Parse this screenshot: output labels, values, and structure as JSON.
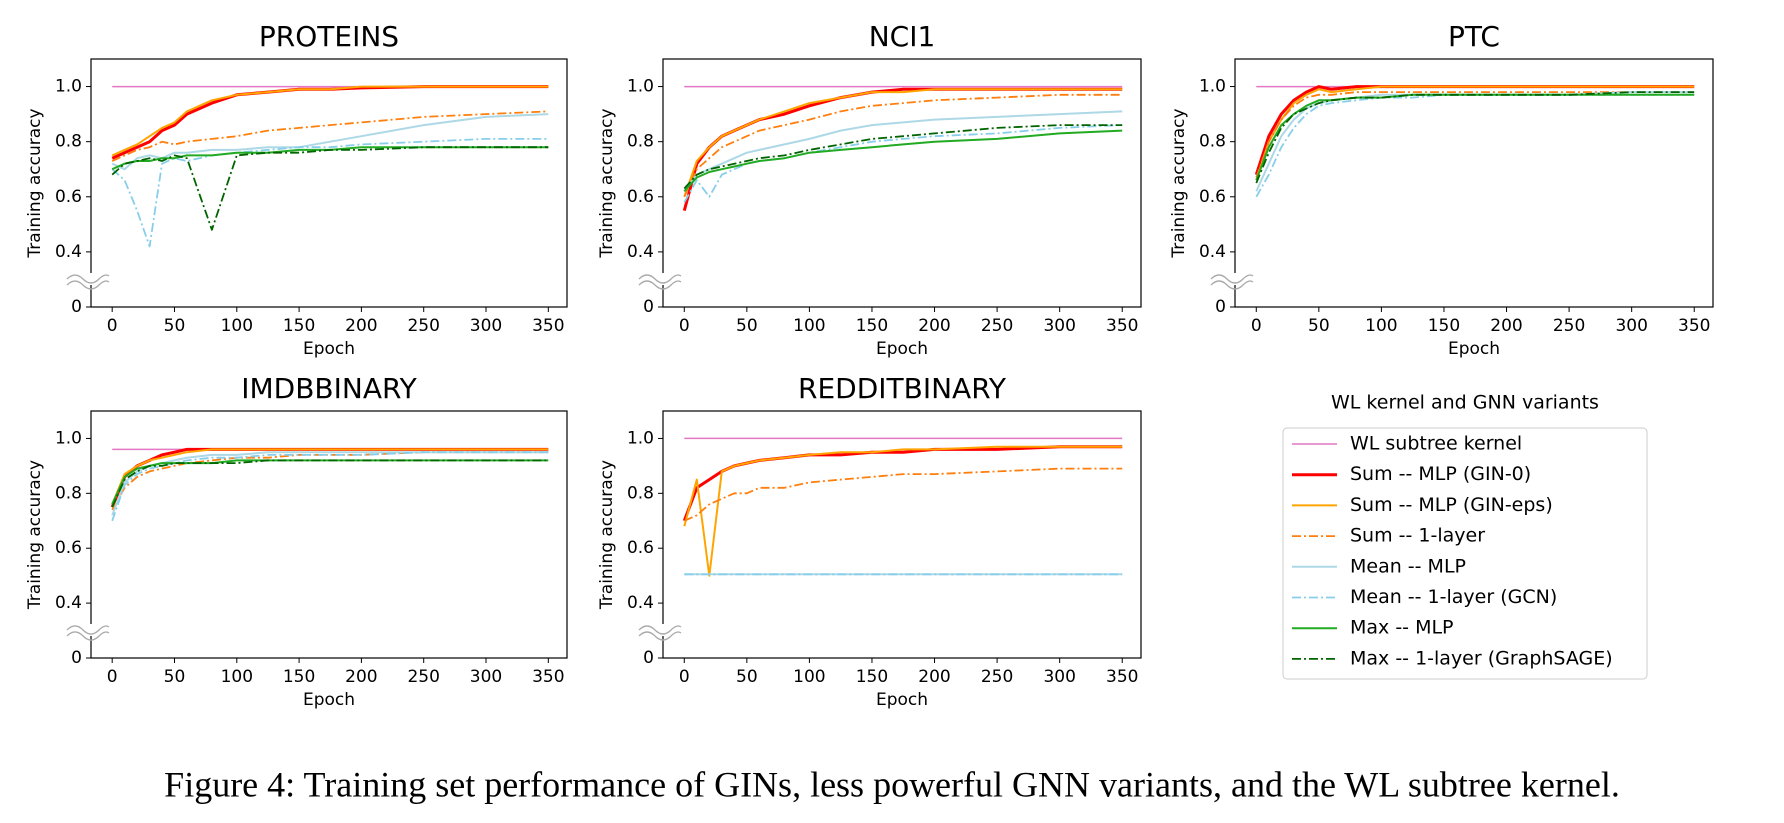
{
  "chart_data": [
    {
      "type": "line",
      "title": "PROTEINS",
      "xlabel": "Epoch",
      "ylabel": "Training accuracy",
      "x": [
        0,
        10,
        20,
        30,
        40,
        50,
        60,
        80,
        100,
        125,
        150,
        175,
        200,
        250,
        300,
        350
      ],
      "xlim": [
        -17,
        365
      ],
      "xticks": [
        0,
        50,
        100,
        150,
        200,
        250,
        300,
        350
      ],
      "ylim": [
        0.2,
        1.1
      ],
      "yticks": [
        {
          "value": 0,
          "label": "0"
        },
        0.4,
        0.6,
        0.8,
        {
          "value": 1,
          "label": "1.0"
        }
      ],
      "series": [
        {
          "values": [
            1,
            1,
            1,
            1,
            1,
            1,
            1,
            1,
            1,
            1,
            1,
            1,
            1,
            1,
            1,
            1
          ]
        },
        {
          "values": [
            0.74,
            0.76,
            0.78,
            0.8,
            0.84,
            0.86,
            0.9,
            0.94,
            0.97,
            0.98,
            0.99,
            0.99,
            0.995,
            1,
            1,
            1
          ]
        },
        {
          "values": [
            0.75,
            0.77,
            0.79,
            0.82,
            0.85,
            0.87,
            0.91,
            0.95,
            0.97,
            0.98,
            0.99,
            0.99,
            1,
            1,
            1,
            1
          ]
        },
        {
          "values": [
            0.73,
            0.75,
            0.77,
            0.78,
            0.8,
            0.79,
            0.8,
            0.81,
            0.82,
            0.84,
            0.85,
            0.86,
            0.87,
            0.89,
            0.9,
            0.91
          ]
        },
        {
          "values": [
            0.72,
            0.7,
            0.74,
            0.75,
            0.74,
            0.76,
            0.76,
            0.77,
            0.77,
            0.78,
            0.78,
            0.8,
            0.82,
            0.86,
            0.89,
            0.9
          ]
        },
        {
          "values": [
            0.7,
            0.66,
            0.55,
            0.42,
            0.72,
            0.74,
            0.73,
            0.75,
            0.76,
            0.77,
            0.78,
            0.78,
            0.79,
            0.8,
            0.81,
            0.81
          ]
        },
        {
          "values": [
            0.7,
            0.72,
            0.73,
            0.73,
            0.74,
            0.74,
            0.75,
            0.75,
            0.76,
            0.76,
            0.77,
            0.77,
            0.78,
            0.78,
            0.78,
            0.78
          ]
        },
        {
          "values": [
            0.68,
            0.72,
            0.73,
            0.74,
            0.73,
            0.75,
            0.74,
            0.48,
            0.75,
            0.76,
            0.76,
            0.77,
            0.77,
            0.78,
            0.78,
            0.78
          ]
        }
      ]
    },
    {
      "type": "line",
      "title": "NCI1",
      "xlabel": "Epoch",
      "ylabel": "Training accuracy",
      "x": [
        0,
        10,
        20,
        30,
        40,
        50,
        60,
        80,
        100,
        125,
        150,
        175,
        200,
        250,
        300,
        350
      ],
      "xlim": [
        -17,
        365
      ],
      "xticks": [
        0,
        50,
        100,
        150,
        200,
        250,
        300,
        350
      ],
      "ylim": [
        0.2,
        1.1
      ],
      "yticks": [
        {
          "value": 0,
          "label": "0"
        },
        0.4,
        0.6,
        0.8,
        {
          "value": 1,
          "label": "1.0"
        }
      ],
      "series": [
        {
          "values": [
            1,
            1,
            1,
            1,
            1,
            1,
            1,
            1,
            1,
            1,
            1,
            1,
            1,
            1,
            1,
            1
          ]
        },
        {
          "values": [
            0.55,
            0.72,
            0.78,
            0.82,
            0.84,
            0.86,
            0.88,
            0.9,
            0.93,
            0.96,
            0.98,
            0.99,
            0.99,
            0.99,
            0.99,
            0.99
          ]
        },
        {
          "values": [
            0.6,
            0.73,
            0.78,
            0.82,
            0.84,
            0.86,
            0.88,
            0.91,
            0.94,
            0.96,
            0.98,
            0.98,
            0.99,
            0.99,
            0.99,
            0.99
          ]
        },
        {
          "values": [
            0.6,
            0.7,
            0.74,
            0.78,
            0.8,
            0.82,
            0.84,
            0.86,
            0.88,
            0.91,
            0.93,
            0.94,
            0.95,
            0.96,
            0.97,
            0.97
          ]
        },
        {
          "values": [
            0.62,
            0.68,
            0.7,
            0.72,
            0.74,
            0.76,
            0.77,
            0.79,
            0.81,
            0.84,
            0.86,
            0.87,
            0.88,
            0.89,
            0.9,
            0.91
          ]
        },
        {
          "values": [
            0.58,
            0.66,
            0.6,
            0.68,
            0.7,
            0.72,
            0.73,
            0.74,
            0.76,
            0.78,
            0.8,
            0.81,
            0.82,
            0.83,
            0.85,
            0.86
          ]
        },
        {
          "values": [
            0.62,
            0.67,
            0.69,
            0.7,
            0.71,
            0.72,
            0.73,
            0.74,
            0.76,
            0.77,
            0.78,
            0.79,
            0.8,
            0.81,
            0.83,
            0.84
          ]
        },
        {
          "values": [
            0.63,
            0.68,
            0.7,
            0.71,
            0.72,
            0.73,
            0.74,
            0.75,
            0.77,
            0.79,
            0.81,
            0.82,
            0.83,
            0.85,
            0.86,
            0.86
          ]
        }
      ]
    },
    {
      "type": "line",
      "title": "PTC",
      "xlabel": "Epoch",
      "ylabel": "Training accuracy",
      "x": [
        0,
        10,
        20,
        30,
        40,
        50,
        60,
        80,
        100,
        125,
        150,
        175,
        200,
        250,
        300,
        350
      ],
      "xlim": [
        -17,
        365
      ],
      "xticks": [
        0,
        50,
        100,
        150,
        200,
        250,
        300,
        350
      ],
      "ylim": [
        0.2,
        1.1
      ],
      "yticks": [
        {
          "value": 0,
          "label": "0"
        },
        0.4,
        0.6,
        0.8,
        {
          "value": 1,
          "label": "1.0"
        }
      ],
      "series": [
        {
          "values": [
            1,
            1,
            1,
            1,
            1,
            1,
            1,
            1,
            1,
            1,
            1,
            1,
            1,
            1,
            1,
            1
          ]
        },
        {
          "values": [
            0.68,
            0.82,
            0.9,
            0.95,
            0.98,
            1,
            0.99,
            1,
            1,
            1,
            1,
            1,
            1,
            1,
            1,
            1
          ]
        },
        {
          "values": [
            0.66,
            0.8,
            0.88,
            0.94,
            0.97,
            0.99,
            0.98,
            0.99,
            1,
            1,
            1,
            1,
            1,
            1,
            1,
            1
          ]
        },
        {
          "values": [
            0.67,
            0.8,
            0.88,
            0.93,
            0.96,
            0.97,
            0.97,
            0.98,
            0.98,
            0.98,
            0.98,
            0.98,
            0.98,
            0.98,
            0.98,
            0.98
          ]
        },
        {
          "values": [
            0.62,
            0.72,
            0.82,
            0.88,
            0.92,
            0.94,
            0.95,
            0.96,
            0.97,
            0.97,
            0.97,
            0.97,
            0.97,
            0.97,
            0.98,
            0.98
          ]
        },
        {
          "values": [
            0.6,
            0.68,
            0.78,
            0.85,
            0.9,
            0.93,
            0.94,
            0.95,
            0.96,
            0.96,
            0.97,
            0.97,
            0.97,
            0.97,
            0.97,
            0.97
          ]
        },
        {
          "values": [
            0.66,
            0.78,
            0.86,
            0.9,
            0.93,
            0.95,
            0.95,
            0.96,
            0.96,
            0.97,
            0.97,
            0.97,
            0.97,
            0.97,
            0.97,
            0.97
          ]
        },
        {
          "values": [
            0.65,
            0.76,
            0.85,
            0.9,
            0.92,
            0.94,
            0.95,
            0.96,
            0.96,
            0.97,
            0.97,
            0.97,
            0.97,
            0.97,
            0.98,
            0.98
          ]
        }
      ]
    },
    {
      "type": "line",
      "title": "IMDBBINARY",
      "xlabel": "Epoch",
      "ylabel": "Training accuracy",
      "x": [
        0,
        10,
        20,
        30,
        40,
        50,
        60,
        80,
        100,
        125,
        150,
        175,
        200,
        250,
        300,
        350
      ],
      "xlim": [
        -17,
        365
      ],
      "xticks": [
        0,
        50,
        100,
        150,
        200,
        250,
        300,
        350
      ],
      "ylim": [
        0.2,
        1.1
      ],
      "yticks": [
        {
          "value": 0,
          "label": "0"
        },
        0.4,
        0.6,
        0.8,
        {
          "value": 1,
          "label": "1.0"
        }
      ],
      "series": [
        {
          "values": [
            0.96,
            0.96,
            0.96,
            0.96,
            0.96,
            0.96,
            0.96,
            0.96,
            0.96,
            0.96,
            0.96,
            0.96,
            0.96,
            0.96,
            0.96,
            0.96
          ]
        },
        {
          "values": [
            0.75,
            0.86,
            0.9,
            0.92,
            0.94,
            0.95,
            0.96,
            0.96,
            0.96,
            0.96,
            0.96,
            0.96,
            0.96,
            0.96,
            0.96,
            0.96
          ]
        },
        {
          "values": [
            0.76,
            0.87,
            0.9,
            0.92,
            0.93,
            0.94,
            0.95,
            0.96,
            0.96,
            0.96,
            0.96,
            0.96,
            0.96,
            0.96,
            0.96,
            0.96
          ]
        },
        {
          "values": [
            0.74,
            0.82,
            0.86,
            0.88,
            0.89,
            0.9,
            0.91,
            0.92,
            0.93,
            0.93,
            0.94,
            0.94,
            0.94,
            0.95,
            0.95,
            0.95
          ]
        },
        {
          "values": [
            0.72,
            0.84,
            0.88,
            0.9,
            0.91,
            0.92,
            0.93,
            0.94,
            0.94,
            0.95,
            0.95,
            0.95,
            0.95,
            0.95,
            0.95,
            0.95
          ]
        },
        {
          "values": [
            0.7,
            0.83,
            0.87,
            0.89,
            0.9,
            0.91,
            0.92,
            0.93,
            0.93,
            0.94,
            0.94,
            0.94,
            0.94,
            0.95,
            0.95,
            0.95
          ]
        },
        {
          "values": [
            0.76,
            0.86,
            0.89,
            0.9,
            0.91,
            0.91,
            0.91,
            0.91,
            0.92,
            0.92,
            0.92,
            0.92,
            0.92,
            0.92,
            0.92,
            0.92
          ]
        },
        {
          "values": [
            0.75,
            0.85,
            0.88,
            0.9,
            0.9,
            0.91,
            0.91,
            0.91,
            0.91,
            0.92,
            0.92,
            0.92,
            0.92,
            0.92,
            0.92,
            0.92
          ]
        }
      ]
    },
    {
      "type": "line",
      "title": "REDDITBINARY",
      "xlabel": "Epoch",
      "ylabel": "Training accuracy",
      "x": [
        0,
        10,
        20,
        30,
        40,
        50,
        60,
        80,
        100,
        125,
        150,
        175,
        200,
        250,
        300,
        350
      ],
      "xlim": [
        -17,
        365
      ],
      "xticks": [
        0,
        50,
        100,
        150,
        200,
        250,
        300,
        350
      ],
      "ylim": [
        0.2,
        1.1
      ],
      "yticks": [
        {
          "value": 0,
          "label": "0"
        },
        0.4,
        0.6,
        0.8,
        {
          "value": 1,
          "label": "1.0"
        }
      ],
      "series": [
        {
          "values": [
            1,
            1,
            1,
            1,
            1,
            1,
            1,
            1,
            1,
            1,
            1,
            1,
            1,
            1,
            1,
            1
          ]
        },
        {
          "values": [
            0.7,
            0.82,
            0.85,
            0.88,
            0.9,
            0.91,
            0.92,
            0.93,
            0.94,
            0.94,
            0.95,
            0.95,
            0.96,
            0.96,
            0.97,
            0.97
          ]
        },
        {
          "values": [
            0.68,
            0.85,
            0.5,
            0.88,
            0.9,
            0.91,
            0.92,
            0.93,
            0.94,
            0.95,
            0.95,
            0.96,
            0.96,
            0.97,
            0.97,
            0.97
          ]
        },
        {
          "values": [
            0.7,
            0.72,
            0.76,
            0.78,
            0.8,
            0.8,
            0.82,
            0.82,
            0.84,
            0.85,
            0.86,
            0.87,
            0.87,
            0.88,
            0.89,
            0.89
          ]
        },
        {
          "values": [
            0.505,
            0.505,
            0.505,
            0.505,
            0.505,
            0.505,
            0.505,
            0.505,
            0.505,
            0.505,
            0.505,
            0.505,
            0.505,
            0.505,
            0.505,
            0.505
          ]
        },
        {
          "values": [
            0.505,
            0.505,
            0.505,
            0.505,
            0.505,
            0.505,
            0.505,
            0.505,
            0.505,
            0.505,
            0.505,
            0.505,
            0.505,
            0.505,
            0.505,
            0.505
          ]
        },
        {
          "values": [
            null,
            null,
            null,
            null,
            null,
            null,
            null,
            null,
            null,
            null,
            null,
            null,
            null,
            null,
            null,
            null
          ]
        },
        {
          "values": [
            null,
            null,
            null,
            null,
            null,
            null,
            null,
            null,
            null,
            null,
            null,
            null,
            null,
            null,
            null,
            null
          ]
        }
      ]
    }
  ],
  "legend": {
    "title": "WL kernel and GNN variants",
    "entries": [
      {
        "name": "WL subtree kernel",
        "color": "#e377c2",
        "dash": "solid",
        "width": 1.5
      },
      {
        "name": "Sum -- MLP (GIN-0)",
        "color": "#ff0000",
        "dash": "solid",
        "width": 3
      },
      {
        "name": "Sum -- MLP (GIN-eps)",
        "color": "#ffa500",
        "dash": "solid",
        "width": 2
      },
      {
        "name": "Sum -- 1-layer",
        "color": "#ff7f0e",
        "dash": "dashdot",
        "width": 1.8
      },
      {
        "name": "Mean -- MLP",
        "color": "#add8e6",
        "dash": "solid",
        "width": 2
      },
      {
        "name": "Mean -- 1-layer (GCN)",
        "color": "#87ceeb",
        "dash": "dashdot",
        "width": 1.8
      },
      {
        "name": "Max -- MLP",
        "color": "#22aa22",
        "dash": "solid",
        "width": 2
      },
      {
        "name": "Max -- 1-layer (GraphSAGE)",
        "color": "#006400",
        "dash": "dashdot",
        "width": 1.8
      }
    ]
  },
  "caption": "Figure 4: Training set performance of GINs, less powerful GNN variants, and the WL subtree kernel."
}
